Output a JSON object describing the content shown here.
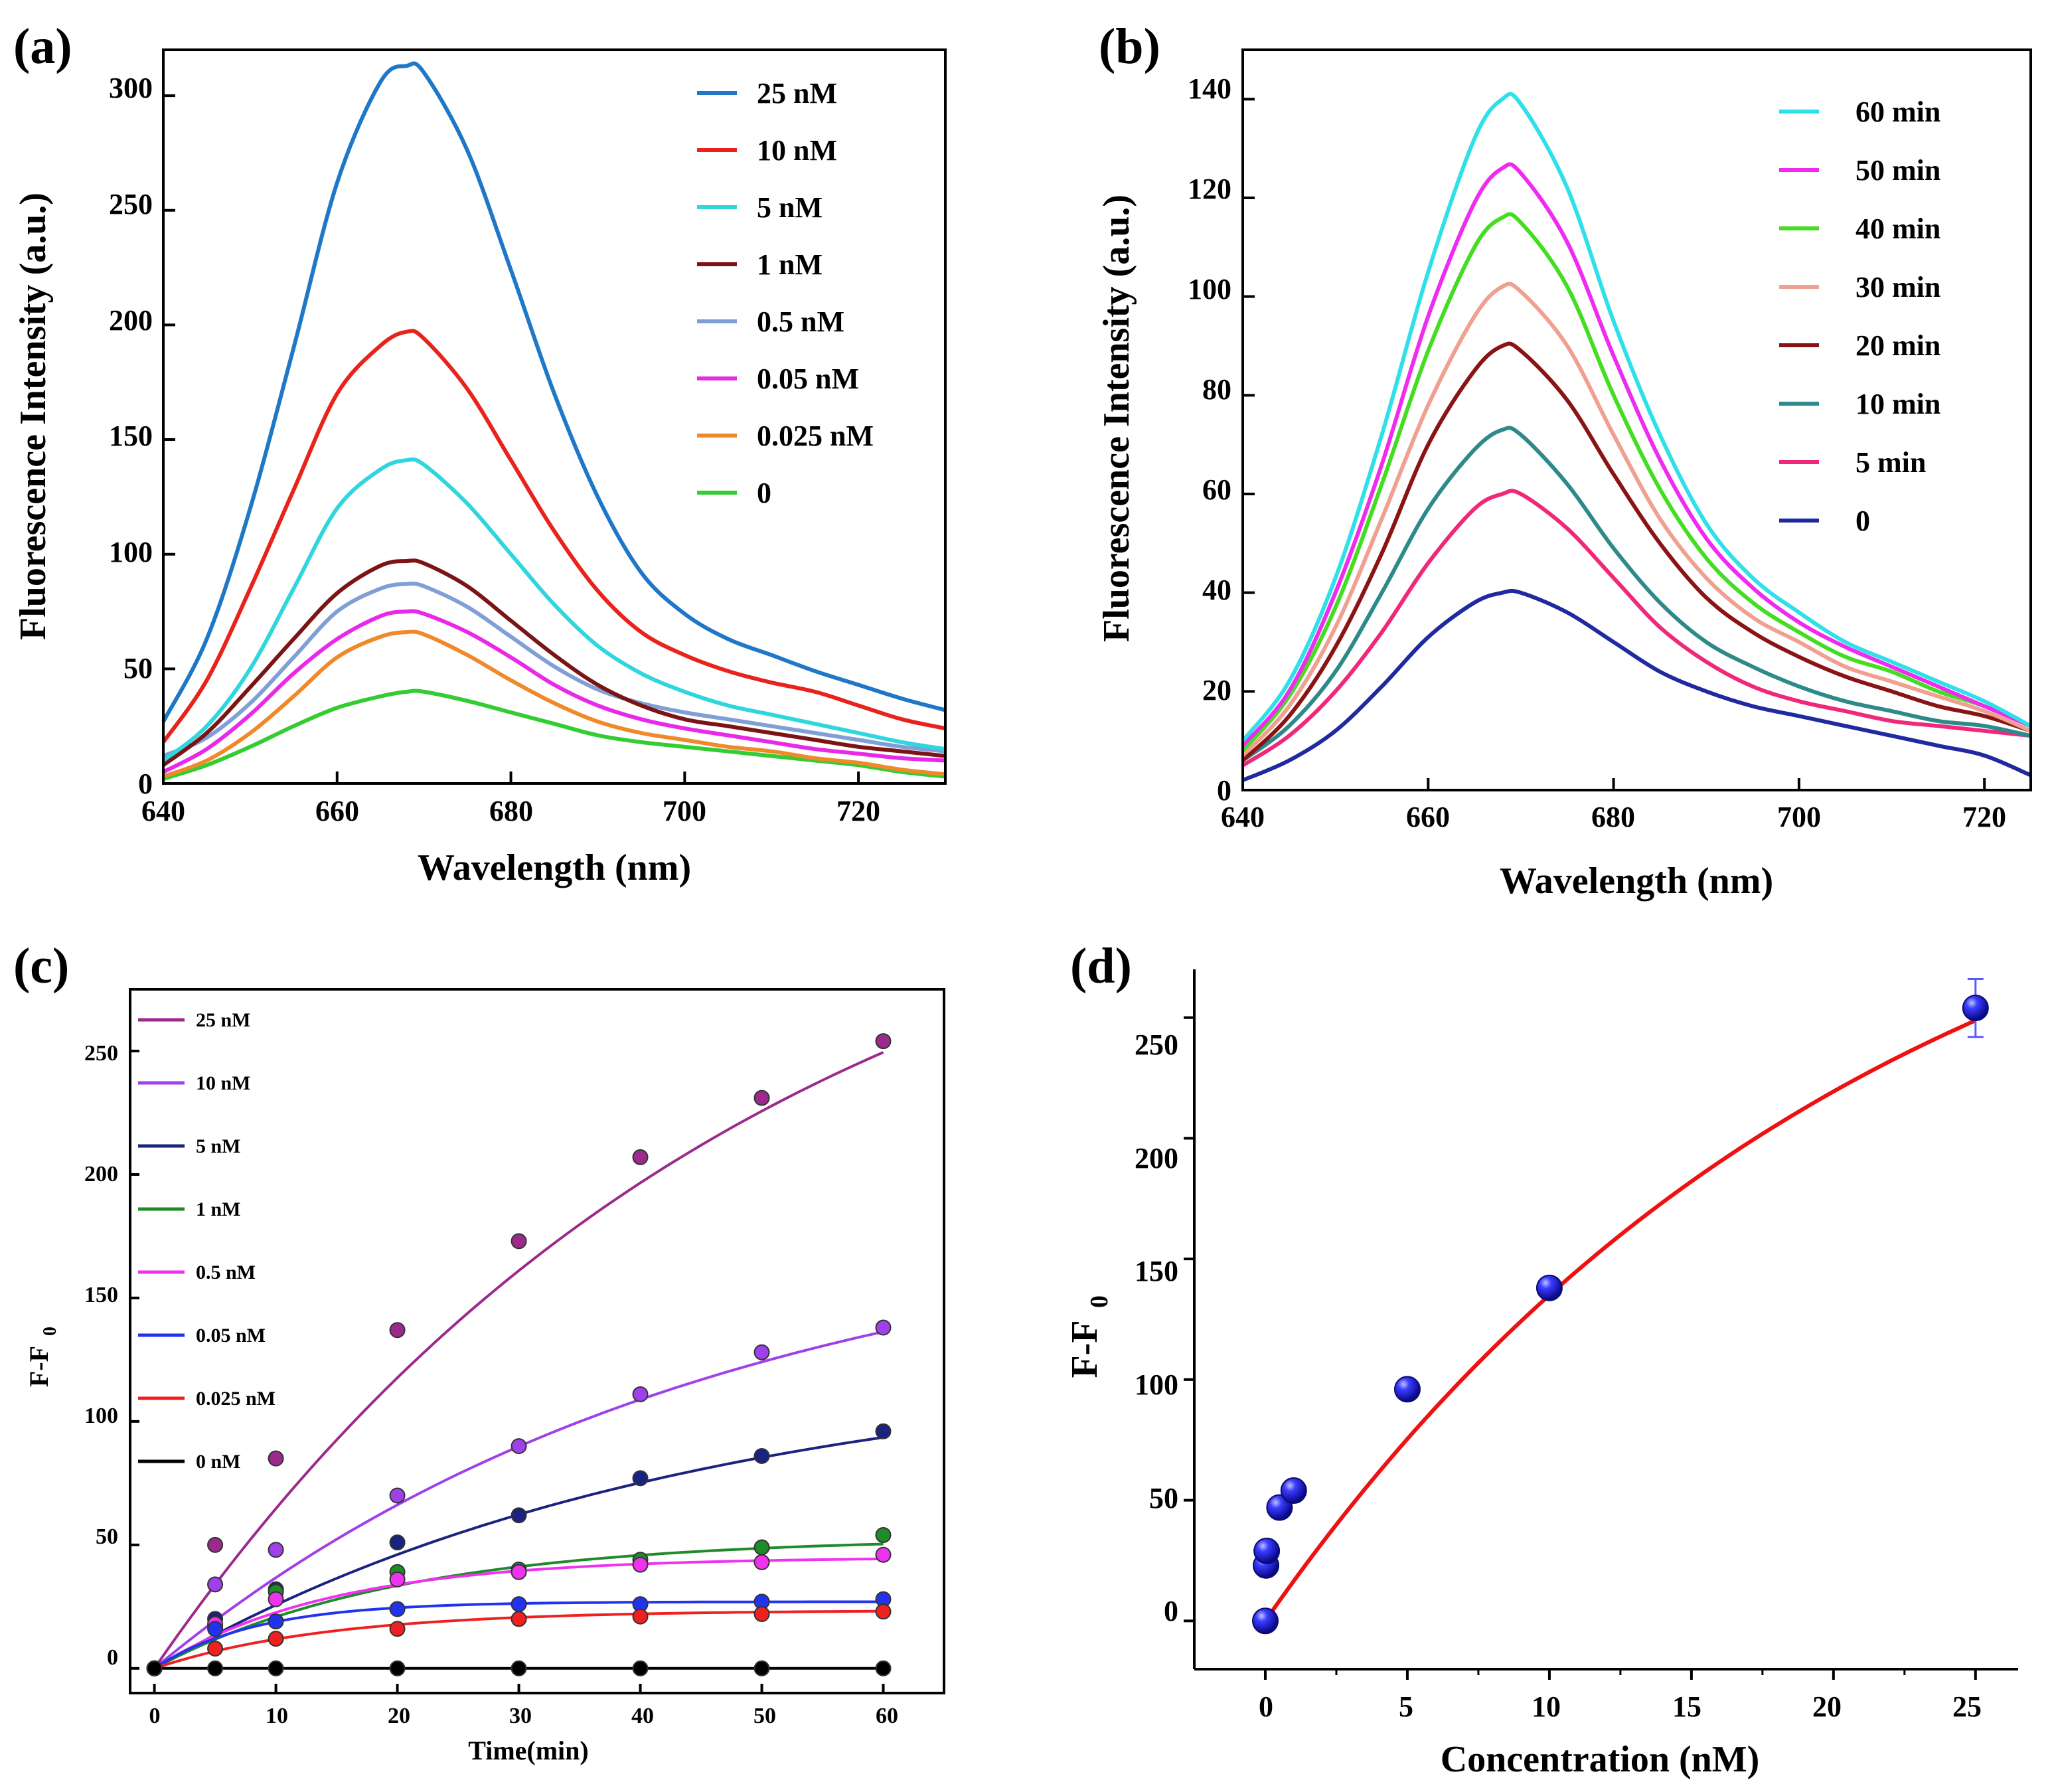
{
  "chart_data": [
    {
      "panel": "(a)",
      "type": "line",
      "xlabel": "Wavelength (nm)",
      "ylabel": "Fluorescence Intensity (a.u.)",
      "xlim": [
        640,
        730
      ],
      "ylim": [
        0,
        320
      ],
      "xticks": [
        640,
        660,
        680,
        700,
        720
      ],
      "yticks": [
        0,
        50,
        100,
        150,
        200,
        250,
        300
      ],
      "legend_position": "top-right",
      "x": [
        640,
        645,
        650,
        655,
        660,
        665,
        668,
        670,
        675,
        680,
        685,
        690,
        695,
        700,
        705,
        710,
        715,
        720,
        725,
        730
      ],
      "series": [
        {
          "name": "25 nM",
          "color": "#1f77c8",
          "values": [
            27,
            63,
            120,
            190,
            262,
            306,
            313,
            310,
            276,
            224,
            170,
            125,
            92,
            74,
            63,
            56,
            49,
            43,
            37,
            32
          ]
        },
        {
          "name": "10 nM",
          "color": "#e8231b",
          "values": [
            18,
            45,
            85,
            128,
            170,
            191,
            197,
            194,
            172,
            141,
            110,
            84,
            66,
            56,
            49,
            44,
            40,
            34,
            28,
            24
          ]
        },
        {
          "name": "5 nM",
          "color": "#2fd6de",
          "values": [
            10,
            25,
            50,
            85,
            120,
            137,
            141,
            139,
            122,
            100,
            78,
            60,
            48,
            40,
            34,
            30,
            26,
            22,
            18,
            15
          ]
        },
        {
          "name": "1 nM",
          "color": "#7b1414",
          "values": [
            8,
            22,
            42,
            63,
            83,
            95,
            97,
            96,
            86,
            71,
            56,
            43,
            34,
            28,
            25,
            22,
            19,
            16,
            14,
            12
          ]
        },
        {
          "name": "0.5 nM",
          "color": "#7f9fd6",
          "values": [
            12,
            20,
            35,
            55,
            75,
            85,
            87,
            86,
            77,
            64,
            51,
            41,
            35,
            31,
            28,
            25,
            22,
            19,
            16,
            14
          ]
        },
        {
          "name": "0.05 nM",
          "color": "#e82ae8",
          "values": [
            5,
            15,
            30,
            48,
            63,
            73,
            75,
            74,
            66,
            55,
            43,
            34,
            28,
            24,
            21,
            18,
            15,
            13,
            11,
            10
          ]
        },
        {
          "name": "0.025 nM",
          "color": "#f0892a",
          "values": [
            3,
            10,
            22,
            38,
            55,
            64,
            66,
            65,
            56,
            45,
            35,
            27,
            22,
            19,
            16,
            14,
            11,
            9,
            6,
            4
          ]
        },
        {
          "name": "0",
          "color": "#33cc33",
          "values": [
            2,
            8,
            16,
            25,
            33,
            38,
            40,
            40,
            36,
            31,
            26,
            21,
            18,
            16,
            14,
            12,
            10,
            8,
            5,
            3
          ]
        }
      ]
    },
    {
      "panel": "(b)",
      "type": "line",
      "xlabel": "Wavelength (nm)",
      "ylabel": "Fluorescence Intensity (a.u.)",
      "xlim": [
        640,
        725
      ],
      "ylim": [
        0,
        150
      ],
      "xticks": [
        640,
        660,
        680,
        700,
        720
      ],
      "yticks": [
        0,
        20,
        40,
        60,
        80,
        100,
        120,
        140
      ],
      "legend_position": "top-right",
      "x": [
        640,
        645,
        650,
        655,
        660,
        665,
        668,
        670,
        675,
        680,
        685,
        690,
        695,
        700,
        705,
        710,
        715,
        720,
        725
      ],
      "series": [
        {
          "name": "60 min",
          "color": "#2fe0ea",
          "values": [
            10,
            22,
            43,
            72,
            105,
            132,
            140,
            139,
            122,
            95,
            72,
            54,
            43,
            36,
            30,
            26,
            22,
            18,
            13
          ]
        },
        {
          "name": "50 min",
          "color": "#ee2bee",
          "values": [
            9,
            20,
            40,
            66,
            96,
            119,
            126,
            125,
            111,
            88,
            67,
            51,
            41,
            34,
            29,
            25,
            21,
            17,
            13
          ]
        },
        {
          "name": "40 min",
          "color": "#44dd22",
          "values": [
            8,
            19,
            37,
            62,
            89,
            110,
            116,
            115,
            102,
            80,
            61,
            47,
            38,
            32,
            27,
            24,
            20,
            17,
            13
          ]
        },
        {
          "name": "30 min",
          "color": "#f0a090",
          "values": [
            7,
            17,
            33,
            55,
            78,
            96,
            102,
            101,
            90,
            72,
            55,
            43,
            35,
            30,
            25,
            22,
            19,
            16,
            12
          ]
        },
        {
          "name": "20 min",
          "color": "#8a1414",
          "values": [
            6,
            15,
            29,
            48,
            70,
            85,
            90,
            89,
            79,
            64,
            50,
            39,
            32,
            27,
            23,
            20,
            17,
            15,
            12
          ]
        },
        {
          "name": "10 min",
          "color": "#2e8a8a",
          "values": [
            6,
            13,
            24,
            40,
            57,
            69,
            73,
            72,
            62,
            49,
            38,
            30,
            25,
            21,
            18,
            16,
            14,
            13,
            11
          ]
        },
        {
          "name": "5 min",
          "color": "#f0287a",
          "values": [
            5,
            11,
            20,
            32,
            46,
            57,
            60,
            60,
            53,
            43,
            33,
            26,
            21,
            18,
            16,
            14,
            13,
            12,
            11
          ]
        },
        {
          "name": "0",
          "color": "#1f2a9f",
          "values": [
            2,
            6,
            12,
            21,
            31,
            38,
            40,
            40,
            36,
            30,
            24,
            20,
            17,
            15,
            13,
            11,
            9,
            7,
            3
          ]
        }
      ]
    },
    {
      "panel": "(c)",
      "type": "scatter",
      "xlabel": "Time(min)",
      "ylabel": "F-F0",
      "xlim": [
        -2,
        65
      ],
      "ylim": [
        -10,
        275
      ],
      "xticks": [
        0,
        10,
        20,
        30,
        40,
        50,
        60
      ],
      "yticks": [
        0,
        50,
        100,
        150,
        200,
        250
      ],
      "legend_position": "top-left",
      "x": [
        0,
        5,
        10,
        20,
        30,
        40,
        50,
        60
      ],
      "series": [
        {
          "name": "25 nM",
          "color": "#9b2a8c",
          "values": [
            0,
            50,
            85,
            137,
            173,
            207,
            231,
            254
          ],
          "fit": {
            "A": 357,
            "k": 0.02
          }
        },
        {
          "name": "10 nM",
          "color": "#a040e8",
          "values": [
            0,
            34,
            48,
            70,
            90,
            111,
            128,
            138
          ],
          "fit": {
            "A": 186,
            "k": 0.022
          }
        },
        {
          "name": "5 nM",
          "color": "#1a237e",
          "values": [
            0,
            20,
            32,
            51,
            62,
            77,
            86,
            96
          ],
          "fit": {
            "A": 125,
            "k": 0.023
          }
        },
        {
          "name": "1 nM",
          "color": "#1f8a2a",
          "values": [
            0,
            17,
            31,
            39,
            40,
            44,
            49,
            54
          ],
          "fit": {
            "A": 53,
            "k": 0.05
          }
        },
        {
          "name": "0.5 nM",
          "color": "#ee33ee",
          "values": [
            0,
            18,
            28,
            36,
            39,
            42,
            43,
            46
          ],
          "fit": {
            "A": 45,
            "k": 0.07
          }
        },
        {
          "name": "0.05 nM",
          "color": "#2233ee",
          "values": [
            0,
            16,
            19,
            24,
            26,
            26,
            27,
            28
          ],
          "fit": {
            "A": 27,
            "k": 0.12
          }
        },
        {
          "name": "0.025 nM",
          "color": "#ee2020",
          "values": [
            0,
            8,
            12,
            16,
            20,
            21,
            22,
            23
          ],
          "fit": {
            "A": 23.5,
            "k": 0.07
          }
        },
        {
          "name": "0 nM",
          "color": "#000000",
          "values": [
            0,
            0,
            0,
            0,
            0,
            0,
            0,
            0
          ],
          "fit": {
            "A": 0,
            "k": 0.1
          }
        }
      ]
    },
    {
      "panel": "(d)",
      "type": "scatter",
      "xlabel": "Concentration (nM)",
      "ylabel": "F-F0",
      "xlim": [
        -2.5,
        26.5
      ],
      "ylim": [
        -20,
        270
      ],
      "xticks": [
        0,
        5,
        10,
        15,
        20,
        25
      ],
      "yticks": [
        0,
        50,
        100,
        150,
        200,
        250
      ],
      "x": [
        0,
        0.025,
        0.05,
        0.5,
        1,
        5,
        10,
        25
      ],
      "values": [
        0,
        23,
        29,
        47,
        54,
        96,
        138,
        254
      ],
      "error_bar": {
        "x": 25,
        "value": 254,
        "error": 12
      },
      "point_color": "#1a1aee",
      "fit": {
        "color": "#ee1111",
        "A": 360,
        "k": 0.047
      }
    }
  ],
  "panels": {
    "a": {
      "label": "(a)",
      "ylabel": "Fluorescence Intensity (a.u.)",
      "xlabel": "Wavelength (nm)",
      "xticks": [
        "640",
        "660",
        "680",
        "700",
        "720"
      ],
      "yticks": [
        "0",
        "50",
        "100",
        "150",
        "200",
        "250",
        "300"
      ],
      "legend": [
        "25 nM",
        "10 nM",
        "5 nM",
        "1 nM",
        "0.5 nM",
        "0.05 nM",
        "0.025 nM",
        "0"
      ]
    },
    "b": {
      "label": "(b)",
      "ylabel": "Fluorescence Intensity (a.u.)",
      "xlabel": "Wavelength (nm)",
      "xticks": [
        "640",
        "660",
        "680",
        "700",
        "720"
      ],
      "yticks": [
        "0",
        "20",
        "40",
        "60",
        "80",
        "100",
        "120",
        "140"
      ],
      "legend": [
        "60 min",
        "50 min",
        "40 min",
        "30 min",
        "20 min",
        "10 min",
        "5 min",
        "0"
      ]
    },
    "c": {
      "label": "(c)",
      "ylabel_main": "F-F",
      "ylabel_sub": "0",
      "xlabel": "Time(min)",
      "xticks": [
        "0",
        "10",
        "20",
        "30",
        "40",
        "50",
        "60"
      ],
      "yticks": [
        "0",
        "50",
        "100",
        "150",
        "200",
        "250"
      ],
      "legend": [
        "25 nM",
        "10 nM",
        "5 nM",
        "1 nM",
        "0.5 nM",
        "0.05 nM",
        "0.025 nM",
        "0 nM"
      ]
    },
    "d": {
      "label": "(d)",
      "ylabel_main": "F-F",
      "ylabel_sub": "0",
      "xlabel": "Concentration (nM)",
      "xticks": [
        "0",
        "5",
        "10",
        "15",
        "20",
        "25"
      ],
      "yticks": [
        "0",
        "50",
        "100",
        "150",
        "200",
        "250"
      ]
    }
  }
}
